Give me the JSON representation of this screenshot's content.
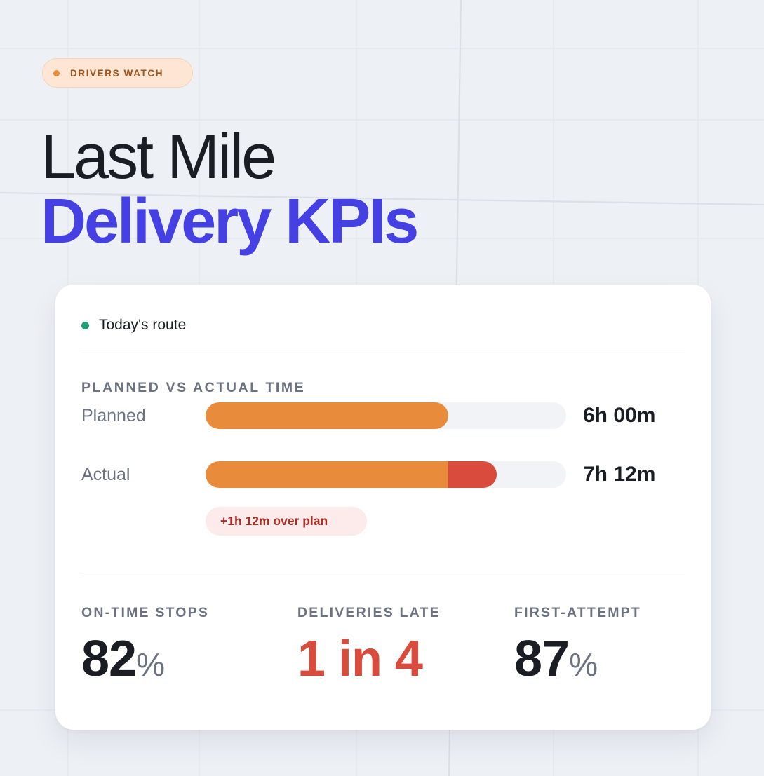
{
  "badge": {
    "label": "DRIVERS WATCH",
    "dot_color": "#e88b3b"
  },
  "title": {
    "line1": "Last Mile",
    "line2": "Delivery KPIs",
    "accent_color": "#4440e4"
  },
  "card": {
    "header": {
      "label": "Today's route",
      "status_color": "#1f9d73"
    },
    "time_section": {
      "label": "PLANNED VS ACTUAL TIME",
      "rows": [
        {
          "label": "Planned",
          "value": "6h 00m",
          "fill_pct": 67.3
        },
        {
          "label": "Actual",
          "value": "7h 12m",
          "fill_pct": 80.8,
          "base_pct": 67.3
        }
      ],
      "overrun_badge": "+1h 12m over plan"
    },
    "stats": [
      {
        "label": "ON-TIME STOPS",
        "value": "82",
        "unit": "%"
      },
      {
        "label": "DELIVERIES LATE",
        "value": "1 in 4",
        "unit": ""
      },
      {
        "label": "FIRST-ATTEMPT",
        "value": "87",
        "unit": "%"
      }
    ]
  },
  "colors": {
    "planned_bar": "#e88b3b",
    "overrun_bar": "#d94b3c",
    "track": "#f2f3f7"
  }
}
